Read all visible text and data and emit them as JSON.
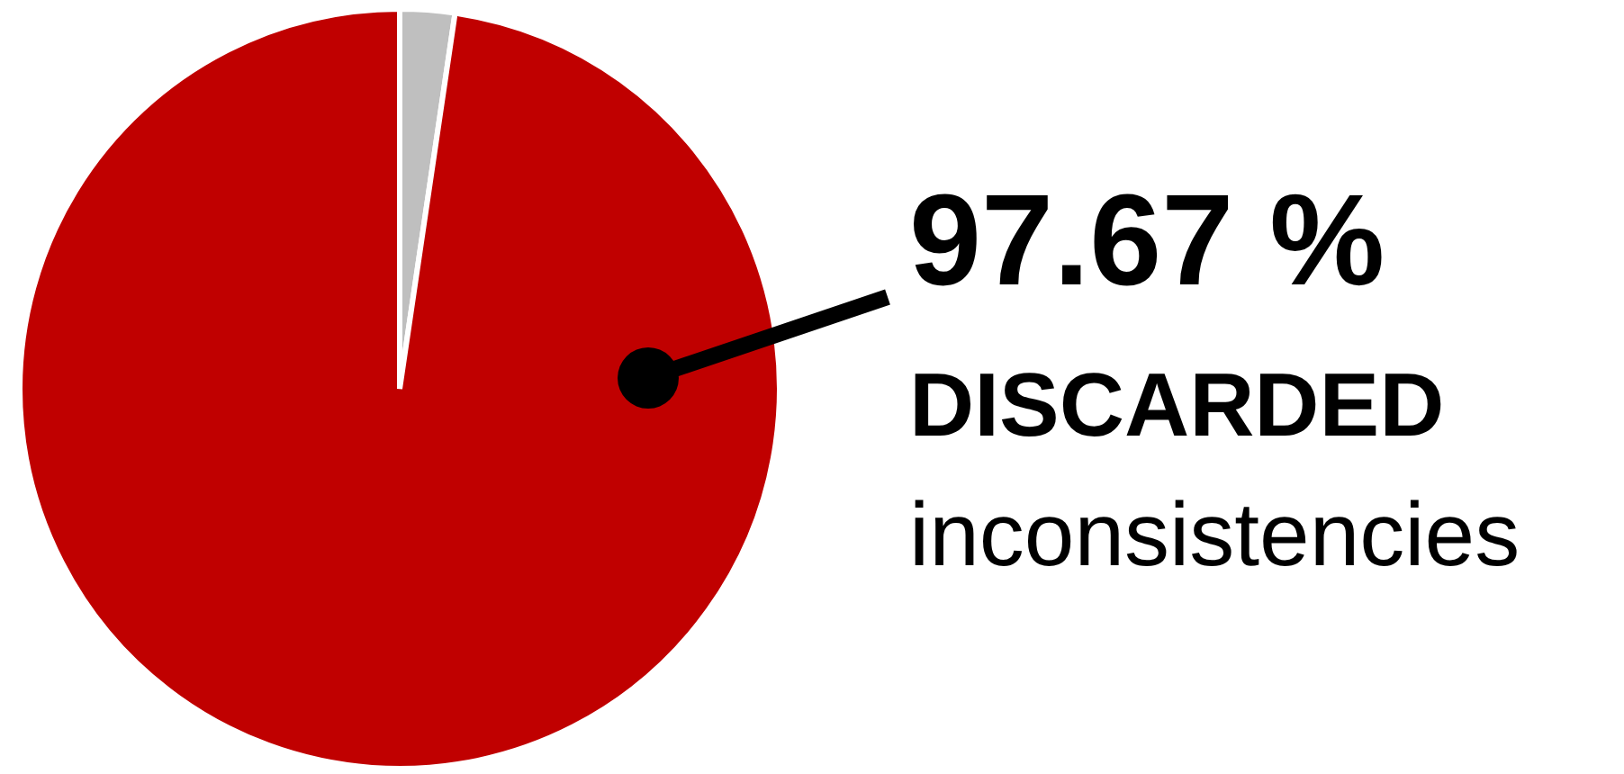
{
  "chart_data": {
    "type": "pie",
    "categories": [
      null,
      "DISCARDED"
    ],
    "values": [
      2.33,
      97.67
    ],
    "colors": [
      "#bfbfbf",
      "#c00000"
    ],
    "value_labels": [
      null,
      "97.67 %"
    ],
    "annotations": [
      "inconsistencies"
    ],
    "legend": false
  }
}
